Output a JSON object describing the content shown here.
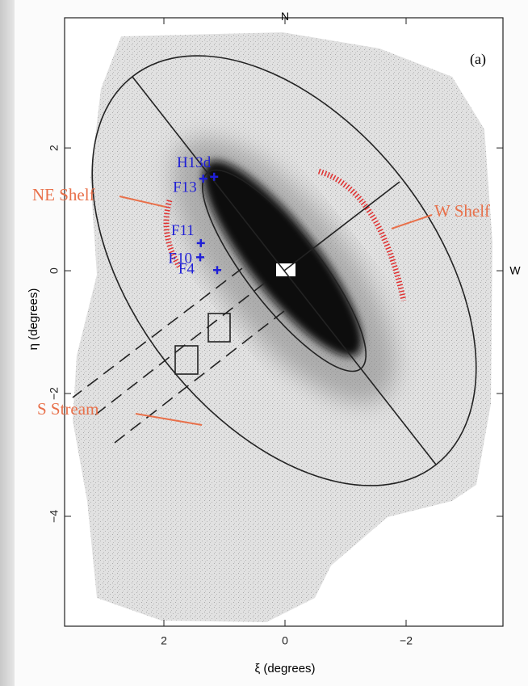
{
  "chart_data": {
    "type": "scatter",
    "x": [
      1.12,
      1.4,
      1.39,
      1.35,
      1.17
    ],
    "values": [
      0.01,
      0.22,
      0.45,
      1.5,
      1.53
    ],
    "point_labels": [
      "F4",
      "F10",
      "F11",
      "F13",
      "H13d"
    ],
    "color": "#1f1fd6",
    "xlabel": "ξ (degrees)",
    "ylabel": "η (degrees)",
    "xlim": [
      3.64,
      -3.6
    ],
    "ylim": [
      -5.79,
      4.12
    ],
    "xticks": [
      2,
      0,
      {
        "value": -2,
        "label": "−2"
      }
    ],
    "yticks": [
      2,
      0,
      {
        "value": -2,
        "label": "−2"
      },
      {
        "value": -4,
        "label": "−4"
      }
    ],
    "annotations": [
      "(a)",
      "N",
      "W",
      "NE Shelf",
      "W Shelf",
      "S Stream"
    ]
  }
}
